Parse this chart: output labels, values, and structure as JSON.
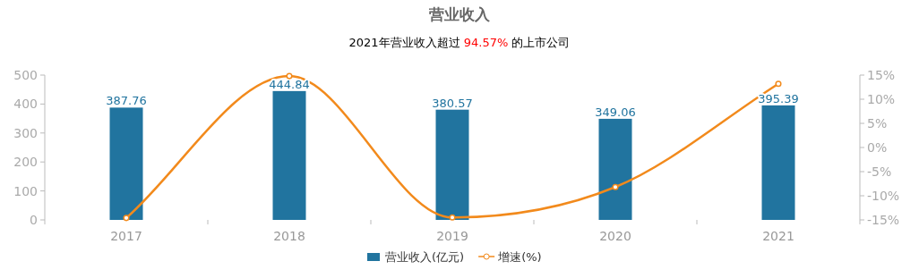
{
  "chart_data": {
    "type": "bar",
    "title": "营业收入",
    "subtitle": "2021年营业收入超过 94.57% 的上市公司",
    "categories": [
      "2017",
      "2018",
      "2019",
      "2020",
      "2021"
    ],
    "series": [
      {
        "name": "营业收入(亿元)",
        "color": "#21749f",
        "values": [
          387.76,
          444.84,
          380.57,
          349.06,
          395.39
        ],
        "data_labels": true
      },
      {
        "name": "增速(%)",
        "type": "line",
        "axis": "y2",
        "color": "#f28a1c",
        "marker": "circle",
        "values": [
          -14.6,
          14.8,
          -14.5,
          -8.2,
          13.2
        ]
      }
    ],
    "ylim": [
      0,
      500
    ],
    "yticks": [
      0,
      100,
      200,
      300,
      400,
      500
    ],
    "y2lim": [
      -15,
      15
    ],
    "y2ticks": [
      {
        "value": -15,
        "label": "-15%"
      },
      {
        "value": -10,
        "label": "-10%"
      },
      {
        "value": -5,
        "label": "-5%"
      },
      {
        "value": 0,
        "label": "0%"
      },
      {
        "value": 5,
        "label": "5%"
      },
      {
        "value": 10,
        "label": "10%"
      },
      {
        "value": 15,
        "label": "15%"
      }
    ],
    "grid": false,
    "legend": "bottom"
  }
}
